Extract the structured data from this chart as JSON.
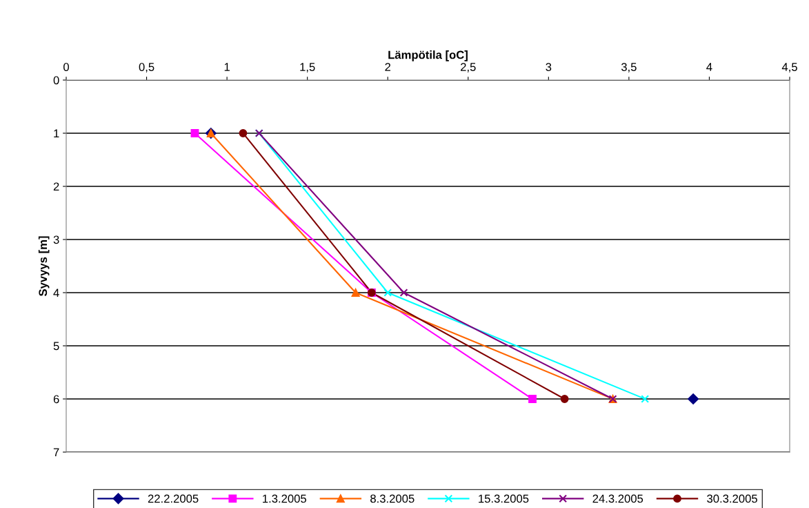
{
  "chart_data": {
    "type": "line",
    "xlabel": "Lämpötila [oC]",
    "ylabel": "Syvyys [m]",
    "xlim": [
      0,
      4.5
    ],
    "xticks": [
      0,
      {
        "value": 0.5,
        "label": "0,5"
      },
      1,
      {
        "value": 1.5,
        "label": "1,5"
      },
      2,
      {
        "value": 2.5,
        "label": "2,5"
      },
      3,
      {
        "value": 3.5,
        "label": "3,5"
      },
      4,
      {
        "value": 4.5,
        "label": "4,5"
      }
    ],
    "ylim": [
      7,
      0
    ],
    "yticks": [
      0,
      1,
      2,
      3,
      4,
      5,
      6,
      7
    ],
    "grid": "y",
    "legend": "bottom",
    "series": [
      {
        "name": "22.2.2005",
        "type": "scatter",
        "color": "#000080",
        "marker": "diamond",
        "x": [
          0.9,
          3.9
        ],
        "values": [
          1,
          6
        ]
      },
      {
        "name": "1.3.2005",
        "color": "#ff00ff",
        "marker": "square",
        "x": [
          0.8,
          1.9,
          2.9
        ],
        "values": [
          1,
          4,
          6
        ]
      },
      {
        "name": "8.3.2005",
        "color": "#ff6600",
        "marker": "triangle",
        "x": [
          0.9,
          1.8,
          3.4
        ],
        "values": [
          1,
          4,
          6
        ]
      },
      {
        "name": "15.3.2005",
        "color": "#00ffff",
        "marker": "cross",
        "x": [
          1.2,
          2.0,
          3.6
        ],
        "values": [
          1,
          4,
          6
        ]
      },
      {
        "name": "24.3.2005",
        "color": "#800080",
        "marker": "cross",
        "x": [
          1.2,
          2.1,
          3.4
        ],
        "values": [
          1,
          4,
          6
        ]
      },
      {
        "name": "30.3.2005",
        "color": "#800000",
        "marker": "circle",
        "x": [
          1.1,
          1.9,
          3.1
        ],
        "values": [
          1,
          4,
          6
        ]
      }
    ]
  }
}
